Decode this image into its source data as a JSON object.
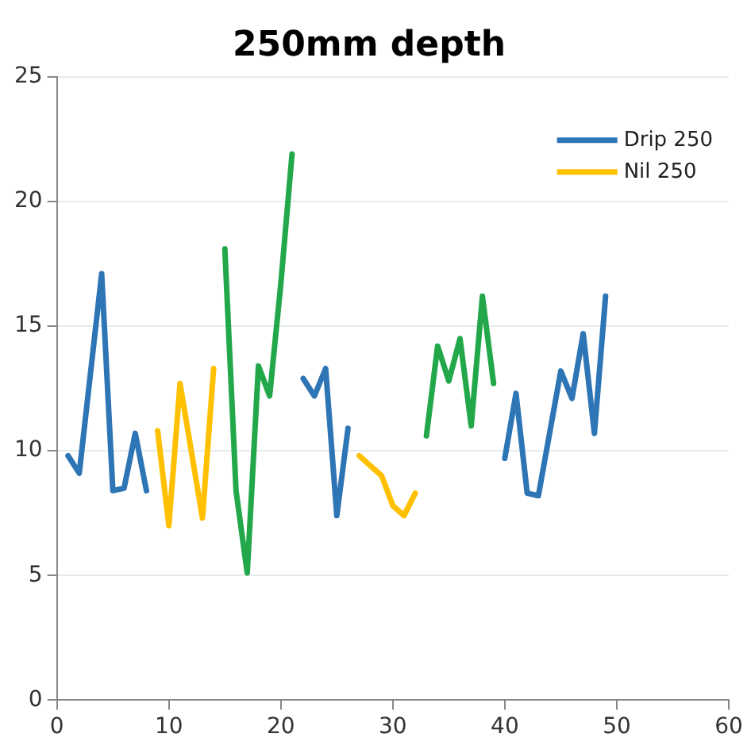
{
  "chart_data": {
    "type": "line",
    "title": "250mm depth",
    "xlim": [
      0,
      60
    ],
    "xticks": [
      0,
      10,
      20,
      30,
      40,
      50,
      60
    ],
    "ylim": [
      0,
      25
    ],
    "yticks": [
      0,
      5,
      10,
      15,
      20,
      25
    ],
    "grid": "y",
    "legend": "top right",
    "marker": "none",
    "line_style": "solid",
    "series": [
      {
        "name": "Drip 250",
        "color": "#2e75b6",
        "x": [
          1,
          2,
          3,
          4,
          5,
          6,
          7,
          8,
          15,
          22,
          23,
          24,
          25,
          26,
          33,
          40,
          41,
          42,
          43,
          44,
          45,
          46,
          47,
          48,
          49
        ],
        "values": [
          9.8,
          9.1,
          13.1,
          17.1,
          8.4,
          8.5,
          10.7,
          8.4,
          null,
          12.9,
          12.2,
          13.3,
          7.4,
          10.9,
          null,
          9.7,
          12.3,
          8.3,
          8.2,
          10.7,
          13.2,
          12.1,
          14.7,
          10.7,
          16.2
        ]
      },
      {
        "name": "Nil 250",
        "color": "#ffc000",
        "x": [
          9,
          10,
          11,
          12,
          13,
          14,
          20,
          27,
          28,
          29,
          30,
          31,
          32
        ],
        "values": [
          10.8,
          7.0,
          12.7,
          10.0,
          7.3,
          13.3,
          null,
          9.8,
          9.4,
          9.0,
          7.8,
          7.4,
          8.3
        ]
      },
      {
        "color": "#22a84a",
        "x": [
          15,
          16,
          17,
          18,
          19,
          20,
          21,
          27,
          33,
          34,
          35,
          36,
          37,
          38,
          39
        ],
        "values": [
          18.1,
          8.4,
          5.1,
          13.4,
          12.2,
          16.7,
          21.9,
          null,
          10.6,
          14.2,
          12.8,
          14.5,
          11.0,
          16.2,
          12.7
        ]
      }
    ]
  }
}
